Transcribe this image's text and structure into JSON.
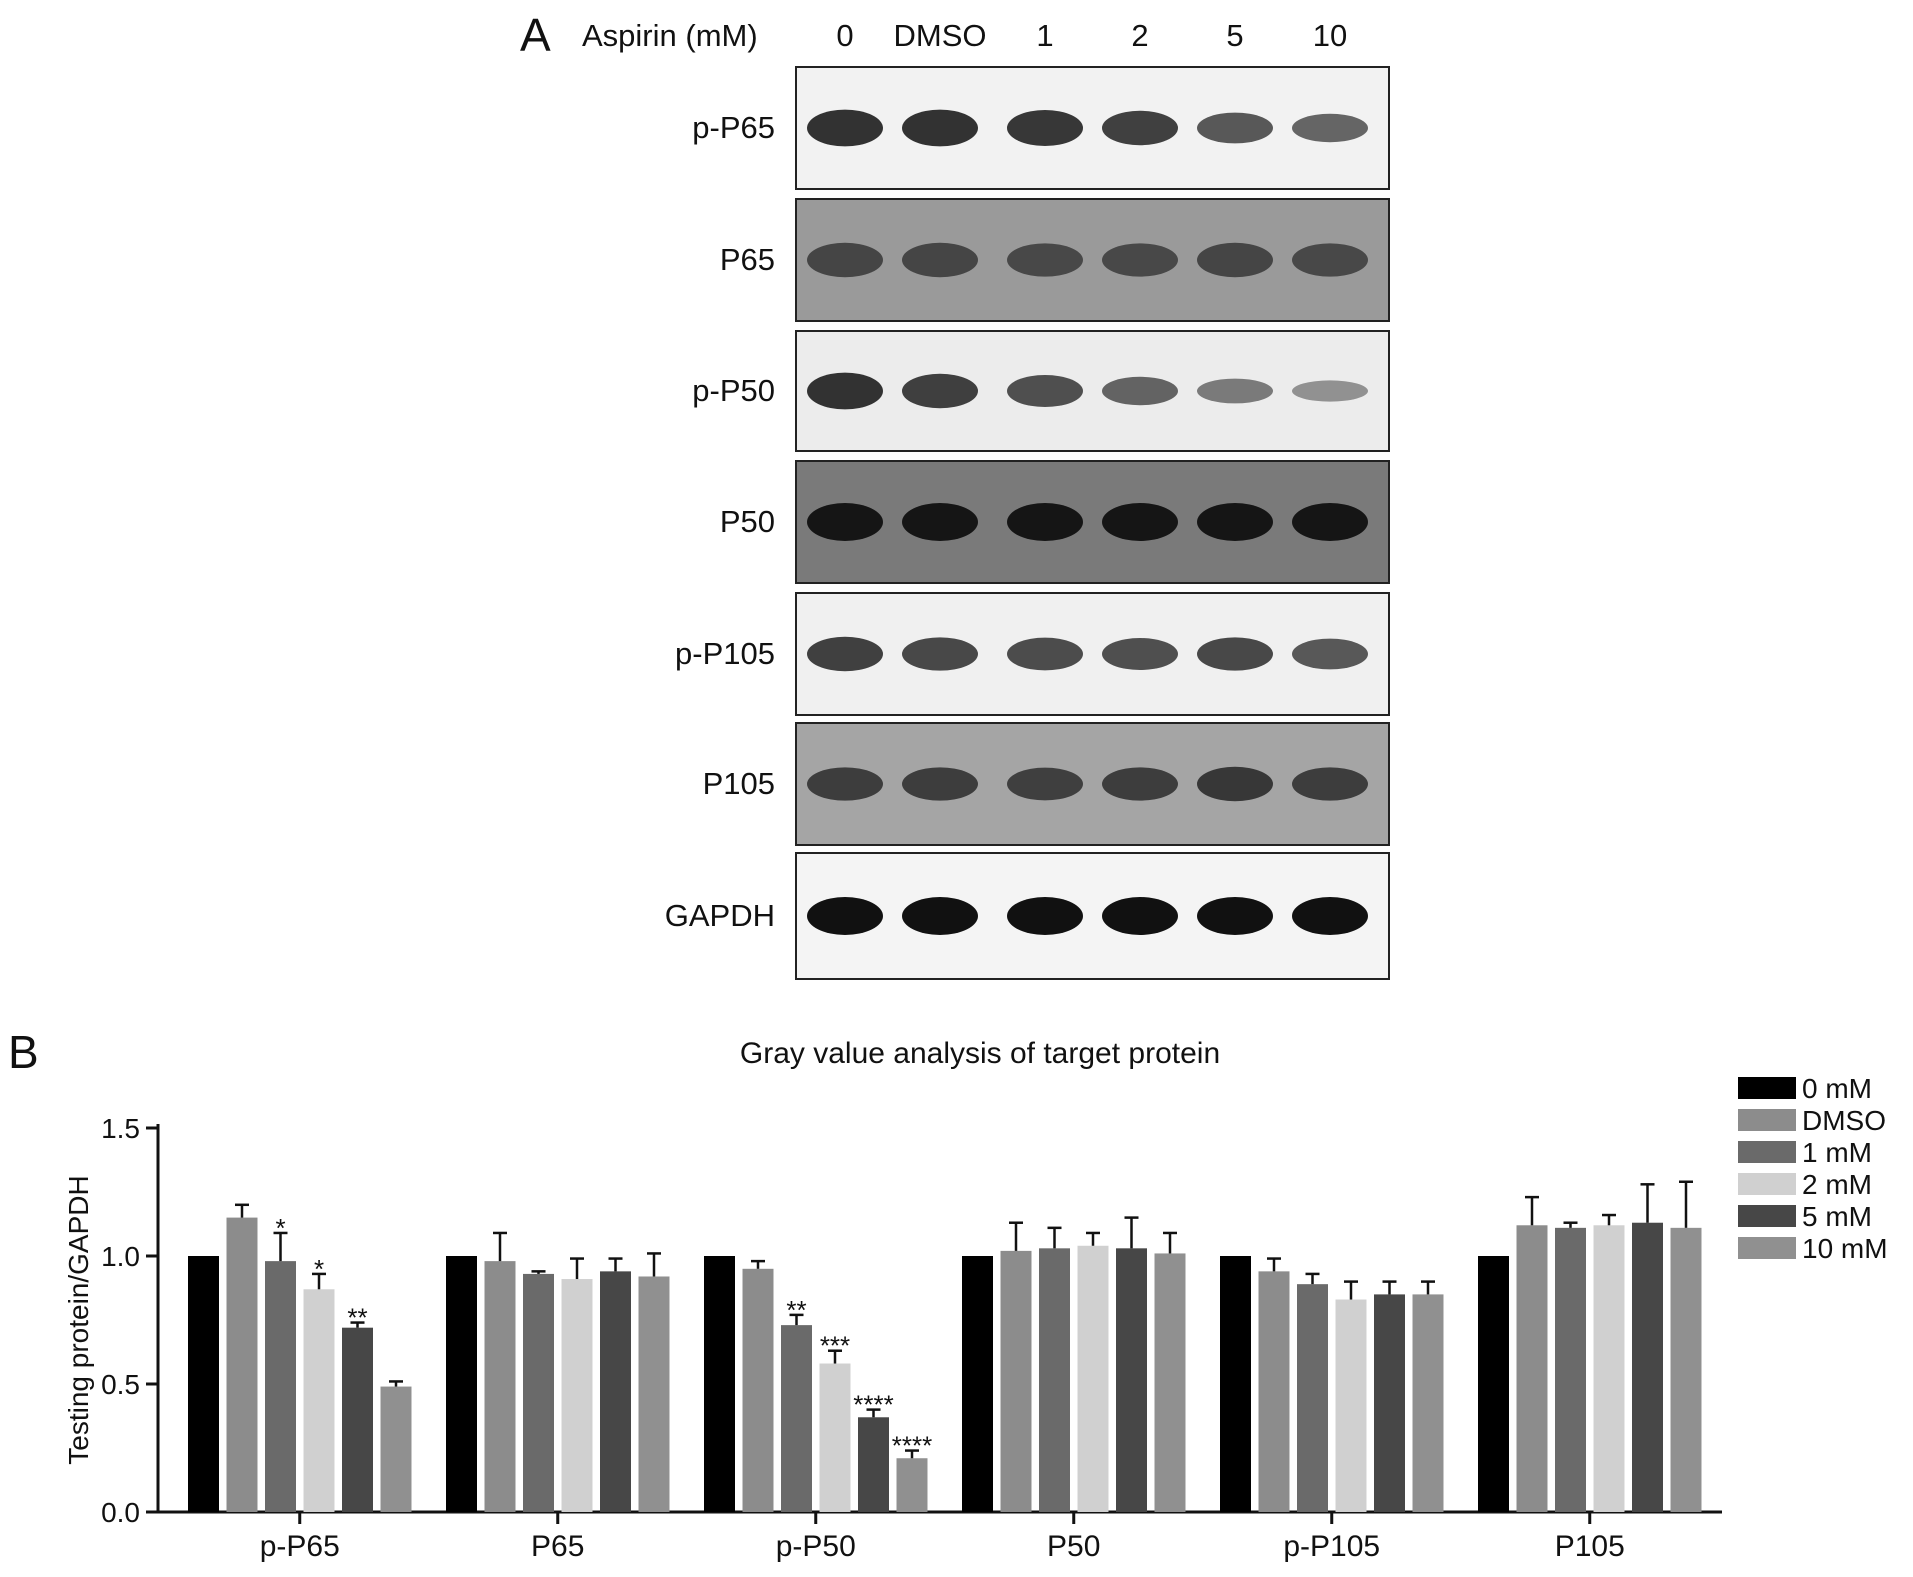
{
  "panel_a": {
    "letter": "A",
    "treatment_header": "Aspirin (mM)",
    "lanes": [
      "0",
      "DMSO",
      "1",
      "2",
      "5",
      "10"
    ],
    "rows": [
      {
        "label": "p-P65",
        "background": "#f2f2f2",
        "band_color": "#2a2a2a",
        "intensities": [
          0.95,
          0.95,
          0.92,
          0.85,
          0.7,
          0.6
        ]
      },
      {
        "label": "P65",
        "background": "#9a9a9a",
        "band_color": "#3a3a3a",
        "intensities": [
          0.85,
          0.85,
          0.8,
          0.8,
          0.85,
          0.8
        ]
      },
      {
        "label": "p-P50",
        "background": "#ececec",
        "band_color": "#2a2a2a",
        "intensities": [
          0.95,
          0.85,
          0.75,
          0.6,
          0.45,
          0.3
        ]
      },
      {
        "label": "P50",
        "background": "#7a7a7a",
        "band_color": "#151515",
        "intensities": [
          1.0,
          1.0,
          1.0,
          1.0,
          1.0,
          1.0
        ]
      },
      {
        "label": "p-P105",
        "background": "#f0f0f0",
        "band_color": "#2a2a2a",
        "intensities": [
          0.85,
          0.8,
          0.78,
          0.75,
          0.8,
          0.7
        ]
      },
      {
        "label": "P105",
        "background": "#a5a5a5",
        "band_color": "#2a2a2a",
        "intensities": [
          0.8,
          0.8,
          0.78,
          0.8,
          0.85,
          0.8
        ]
      },
      {
        "label": "GAPDH",
        "background": "#f4f4f4",
        "band_color": "#111111",
        "intensities": [
          1.0,
          1.0,
          1.0,
          1.0,
          1.0,
          1.0
        ]
      }
    ]
  },
  "panel_b": {
    "letter": "B"
  },
  "chart_data": {
    "type": "bar",
    "title": "Gray value analysis of target protein",
    "xlabel": "",
    "ylabel": "Testing protein/GAPDH",
    "ylim": [
      0,
      1.5
    ],
    "yticks": [
      "0.0",
      "0.5",
      "1.0",
      "1.5"
    ],
    "grid": false,
    "legend_position": "top-right",
    "categories": [
      "p-P65",
      "P65",
      "p-P50",
      "P50",
      "p-P105",
      "P105"
    ],
    "series": [
      {
        "name": "0 mM",
        "color": "#000000",
        "values": [
          1.0,
          1.0,
          1.0,
          1.0,
          1.0,
          1.0
        ],
        "errors": [
          0,
          0,
          0,
          0,
          0,
          0
        ],
        "significance": [
          "",
          "",
          "",
          "",
          "",
          ""
        ]
      },
      {
        "name": "DMSO",
        "color": "#8c8c8c",
        "values": [
          1.15,
          0.98,
          0.95,
          1.02,
          0.94,
          1.12
        ],
        "errors": [
          0.05,
          0.11,
          0.03,
          0.11,
          0.05,
          0.11
        ],
        "significance": [
          "",
          "",
          "",
          "",
          "",
          ""
        ]
      },
      {
        "name": "1 mM",
        "color": "#6a6a6a",
        "values": [
          0.98,
          0.93,
          0.73,
          1.03,
          0.89,
          1.11
        ],
        "errors": [
          0.11,
          0.01,
          0.04,
          0.08,
          0.04,
          0.02
        ],
        "significance": [
          "*",
          "",
          "**",
          "",
          "",
          ""
        ]
      },
      {
        "name": "2 mM",
        "color": "#d0d0d0",
        "values": [
          0.87,
          0.91,
          0.58,
          1.04,
          0.83,
          1.12
        ],
        "errors": [
          0.06,
          0.08,
          0.05,
          0.05,
          0.07,
          0.04
        ],
        "significance": [
          "*",
          "",
          "***",
          "",
          "",
          ""
        ]
      },
      {
        "name": "5 mM",
        "color": "#474747",
        "values": [
          0.72,
          0.94,
          0.37,
          1.03,
          0.85,
          1.13
        ],
        "errors": [
          0.02,
          0.05,
          0.03,
          0.12,
          0.05,
          0.15
        ],
        "significance": [
          "**",
          "",
          "****",
          "",
          "",
          ""
        ]
      },
      {
        "name": "10 mM",
        "color": "#909090",
        "values": [
          0.49,
          0.92,
          0.21,
          1.01,
          0.85,
          1.11
        ],
        "errors": [
          0.02,
          0.09,
          0.03,
          0.08,
          0.05,
          0.18
        ],
        "significance": [
          "",
          "",
          "****",
          "",
          "",
          ""
        ]
      }
    ]
  }
}
